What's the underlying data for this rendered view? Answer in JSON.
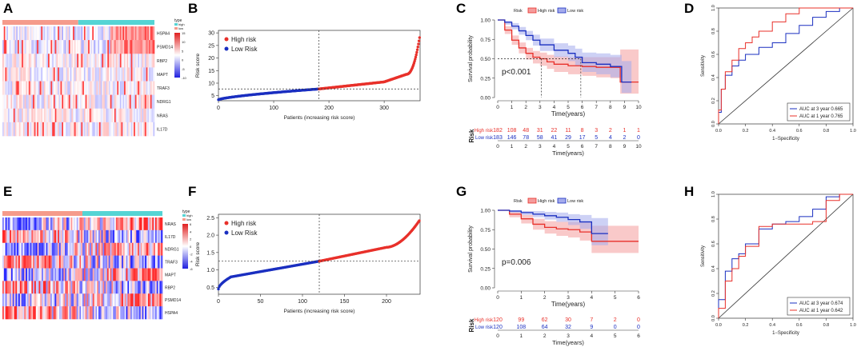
{
  "colors": {
    "high": "#e8302a",
    "low": "#1a2fc0",
    "high_fill": "#f49c9c",
    "low_fill": "#a4abec",
    "type_high": "#f59b8b",
    "type_low": "#55d4d4"
  },
  "panel_letters": [
    "A",
    "B",
    "C",
    "D",
    "E",
    "F",
    "G",
    "H"
  ],
  "chart_data": [
    {
      "panel": "A",
      "type": "heatmap",
      "legend": {
        "title": "type",
        "entries": [
          "high",
          "low"
        ]
      },
      "scale_ticks": [
        "15",
        "10",
        "5",
        "0",
        "-5",
        "-10"
      ],
      "rows": [
        "HSPA4",
        "PSMD14",
        "RBP2",
        "MAPT",
        "TRAF3",
        "NDRG1",
        "NRAS",
        "IL17D"
      ],
      "groups": [
        {
          "name": "high",
          "n": 182
        },
        {
          "name": "low",
          "n": 183
        }
      ]
    },
    {
      "panel": "B",
      "type": "scatter",
      "xlabel": "Patients (increasing risk score)",
      "ylabel": "Risk score",
      "x_ticks": [
        0,
        100,
        200,
        300
      ],
      "y_ticks": [
        5,
        10,
        15,
        20,
        25,
        30
      ],
      "xlim": [
        0,
        365
      ],
      "ylim": [
        3,
        31
      ],
      "cutoff_index": 182,
      "cutoff_value": 7.7,
      "legend": [
        "High risk",
        "Low Risk"
      ],
      "n_low": 183,
      "n_high": 182,
      "curve": {
        "start": 3.4,
        "at_cutoff": 7.7,
        "at_300": 10.5,
        "at_340": 13.5,
        "end": 29.5
      }
    },
    {
      "panel": "C",
      "type": "line",
      "title_legend": [
        "Risk",
        "High risk",
        "Low risk"
      ],
      "ylabel": "Survival probability",
      "xlabel": "Time(years)",
      "x_ticks": [
        0,
        1,
        2,
        3,
        4,
        5,
        6,
        7,
        8,
        9,
        10
      ],
      "y_ticks": [
        "0.00",
        "0.25",
        "0.50",
        "0.75",
        "1.00"
      ],
      "xlim": [
        0,
        10
      ],
      "ylim": [
        0,
        1
      ],
      "pvalue": "p<0.001",
      "median_high": 3.1,
      "median_low": 5.9,
      "series": [
        {
          "name": "High risk",
          "x": [
            0,
            0.5,
            1,
            1.5,
            2,
            2.5,
            3,
            3.5,
            4,
            5,
            6,
            7,
            8,
            8.7,
            10
          ],
          "y": [
            1,
            0.87,
            0.74,
            0.64,
            0.57,
            0.52,
            0.5,
            0.46,
            0.43,
            0.41,
            0.4,
            0.39,
            0.39,
            0.2,
            0.2
          ],
          "lo": [
            1,
            0.82,
            0.68,
            0.57,
            0.49,
            0.44,
            0.41,
            0.37,
            0.33,
            0.3,
            0.28,
            0.26,
            0.25,
            0.05,
            0.05
          ],
          "hi": [
            1,
            0.92,
            0.8,
            0.71,
            0.64,
            0.6,
            0.58,
            0.55,
            0.53,
            0.52,
            0.52,
            0.52,
            0.52,
            0.62,
            0.62
          ]
        },
        {
          "name": "Low risk",
          "x": [
            0,
            0.5,
            1,
            1.5,
            2,
            2.5,
            3,
            4,
            5,
            5.5,
            6,
            7,
            8,
            8.8,
            9.5
          ],
          "y": [
            1,
            0.97,
            0.92,
            0.86,
            0.8,
            0.74,
            0.68,
            0.61,
            0.57,
            0.52,
            0.45,
            0.43,
            0.4,
            0.2,
            0.2
          ],
          "lo": [
            1,
            0.94,
            0.88,
            0.81,
            0.74,
            0.67,
            0.6,
            0.52,
            0.47,
            0.41,
            0.33,
            0.3,
            0.26,
            0.06,
            0.06
          ],
          "hi": [
            1,
            0.99,
            0.96,
            0.91,
            0.86,
            0.81,
            0.76,
            0.7,
            0.67,
            0.63,
            0.58,
            0.57,
            0.55,
            0.47,
            0.47
          ]
        }
      ],
      "risk_table": {
        "title": "Risk",
        "xlabel": "Time(years)",
        "rows": [
          {
            "label": "High risk",
            "values": [
              "182",
              "108",
              "48",
              "31",
              "22",
              "11",
              "8",
              "3",
              "2",
              "1",
              "1"
            ]
          },
          {
            "label": "Low risk",
            "values": [
              "183",
              "146",
              "78",
              "58",
              "41",
              "29",
              "17",
              "5",
              "4",
              "2",
              "0"
            ]
          }
        ]
      }
    },
    {
      "panel": "D",
      "type": "line",
      "xlabel": "1−Specificity",
      "ylabel": "Sensitivity",
      "ticks": [
        "0.0",
        "0.2",
        "0.4",
        "0.6",
        "0.8",
        "1.0"
      ],
      "xlim": [
        0,
        1
      ],
      "ylim": [
        0,
        1
      ],
      "series": [
        {
          "name": "AUC at 3 year 0.665",
          "x": [
            0,
            0.02,
            0.05,
            0.1,
            0.15,
            0.2,
            0.3,
            0.4,
            0.5,
            0.6,
            0.7,
            0.8,
            0.9,
            1
          ],
          "y": [
            0,
            0.1,
            0.3,
            0.42,
            0.5,
            0.55,
            0.6,
            0.66,
            0.7,
            0.78,
            0.85,
            0.92,
            0.97,
            1
          ]
        },
        {
          "name": "AUC at 1 year 0.765",
          "x": [
            0,
            0.02,
            0.05,
            0.1,
            0.15,
            0.2,
            0.25,
            0.3,
            0.4,
            0.5,
            0.6,
            0.8,
            1
          ],
          "y": [
            0,
            0.12,
            0.3,
            0.45,
            0.55,
            0.65,
            0.7,
            0.75,
            0.8,
            0.88,
            0.95,
            1,
            1
          ]
        }
      ]
    },
    {
      "panel": "E",
      "type": "heatmap",
      "legend": {
        "title": "type",
        "entries": [
          "high",
          "low"
        ]
      },
      "scale_ticks": [
        "6",
        "4",
        "2",
        "0",
        "-2",
        "-4",
        "-6"
      ],
      "rows": [
        "NRAS",
        "IL17D",
        "NDRG1",
        "TRAF3",
        "MAPT",
        "RBP2",
        "PSMD14",
        "HSPA4"
      ],
      "groups": [
        {
          "name": "high",
          "n": 120
        },
        {
          "name": "low",
          "n": 120
        }
      ]
    },
    {
      "panel": "F",
      "type": "scatter",
      "xlabel": "Patients (increasing risk score)",
      "ylabel": "Risk score",
      "x_ticks": [
        0,
        50,
        100,
        150,
        200
      ],
      "y_ticks": [
        "0.5",
        "1.0",
        "1.5",
        "2.0",
        "2.5"
      ],
      "xlim": [
        0,
        240
      ],
      "ylim": [
        0.3,
        2.6
      ],
      "cutoff_index": 120,
      "cutoff_value": 1.25,
      "legend": [
        "High risk",
        "Low Risk"
      ],
      "n_low": 120,
      "n_high": 120,
      "curve": {
        "start": 0.45,
        "early": 0.8,
        "at_cutoff": 1.25,
        "at_200": 1.65,
        "end": 2.45
      }
    },
    {
      "panel": "G",
      "type": "line",
      "title_legend": [
        "Risk",
        "High risk",
        "Low risk"
      ],
      "ylabel": "Survival probability",
      "xlabel": "Time(years)",
      "x_ticks": [
        0,
        1,
        2,
        3,
        4,
        5,
        6
      ],
      "y_ticks": [
        "0.00",
        "0.25",
        "0.50",
        "0.75",
        "1.00"
      ],
      "xlim": [
        0,
        6
      ],
      "ylim": [
        0,
        1
      ],
      "pvalue": "p=0.006",
      "series": [
        {
          "name": "High risk",
          "x": [
            0,
            0.5,
            1,
            1.5,
            2,
            2.5,
            3,
            3.5,
            4,
            4.7,
            6
          ],
          "y": [
            1,
            0.95,
            0.89,
            0.82,
            0.78,
            0.76,
            0.75,
            0.72,
            0.6,
            0.6,
            0.6
          ],
          "lo": [
            1,
            0.91,
            0.83,
            0.75,
            0.7,
            0.67,
            0.65,
            0.61,
            0.45,
            0.45,
            0.45
          ],
          "hi": [
            1,
            0.98,
            0.94,
            0.89,
            0.86,
            0.85,
            0.85,
            0.84,
            0.8,
            0.8,
            0.8
          ]
        },
        {
          "name": "Low risk",
          "x": [
            0,
            0.5,
            1,
            1.5,
            2,
            2.5,
            3,
            3.5,
            4,
            4.7
          ],
          "y": [
            1,
            0.99,
            0.97,
            0.95,
            0.93,
            0.91,
            0.88,
            0.85,
            0.7,
            0.7
          ],
          "lo": [
            1,
            0.97,
            0.94,
            0.91,
            0.88,
            0.85,
            0.81,
            0.76,
            0.55,
            0.55
          ],
          "hi": [
            1,
            1,
            0.99,
            0.99,
            0.98,
            0.97,
            0.95,
            0.94,
            0.9,
            0.9
          ]
        }
      ],
      "risk_table": {
        "title": "Risk",
        "xlabel": "Time(years)",
        "rows": [
          {
            "label": "High risk",
            "values": [
              "120",
              "99",
              "62",
              "30",
              "7",
              "2",
              "0"
            ]
          },
          {
            "label": "Low risk",
            "values": [
              "120",
              "108",
              "64",
              "32",
              "9",
              "0",
              "0"
            ]
          }
        ]
      }
    },
    {
      "panel": "H",
      "type": "line",
      "xlabel": "1−Specificity",
      "ylabel": "Sensitivity",
      "ticks": [
        "0.0",
        "0.2",
        "0.4",
        "0.6",
        "0.8",
        "1.0"
      ],
      "xlim": [
        0,
        1
      ],
      "ylim": [
        0,
        1
      ],
      "series": [
        {
          "name": "AUC at 3 year 0.674",
          "x": [
            0,
            0.05,
            0.1,
            0.15,
            0.2,
            0.3,
            0.4,
            0.5,
            0.6,
            0.7,
            0.8,
            0.9,
            1
          ],
          "y": [
            0,
            0.15,
            0.38,
            0.48,
            0.52,
            0.6,
            0.72,
            0.76,
            0.78,
            0.82,
            0.88,
            0.98,
            1
          ]
        },
        {
          "name": "AUC at 1 year 0.642",
          "x": [
            0,
            0.05,
            0.1,
            0.15,
            0.2,
            0.3,
            0.4,
            0.5,
            0.6,
            0.7,
            0.8,
            0.9,
            1
          ],
          "y": [
            0,
            0.08,
            0.3,
            0.4,
            0.5,
            0.58,
            0.74,
            0.76,
            0.76,
            0.76,
            0.78,
            0.95,
            1
          ]
        }
      ]
    }
  ]
}
